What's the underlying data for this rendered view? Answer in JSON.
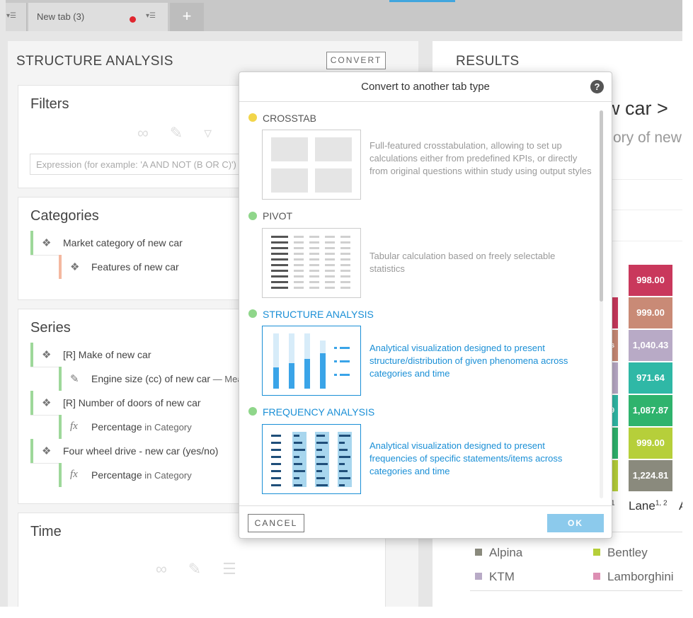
{
  "tabs": {
    "active_label": "New tab (3)",
    "add_label": "+"
  },
  "left_panel": {
    "title": "STRUCTURE ANALYSIS",
    "convert_label": "CONVERT",
    "filters": {
      "title": "Filters",
      "expression_placeholder": "Expression (for example: 'A AND NOT (B OR C)')"
    },
    "categories": {
      "title": "Categories",
      "items": [
        {
          "label": "Market category of new car",
          "color": "#9ed89a"
        },
        {
          "label": "Features of new car",
          "color": "#f4b8a0"
        }
      ]
    },
    "series": {
      "title": "Series",
      "items": [
        {
          "label": "[R] Make of new car",
          "suffix": ""
        },
        {
          "label": "Engine size (cc) of new car",
          "suffix": " —  Mea"
        },
        {
          "label": "[R] Number of doors of new car",
          "suffix": ""
        },
        {
          "label": "Percentage",
          "suffix": " in Category"
        },
        {
          "label": "Four wheel drive - new car (yes/no)",
          "suffix": ""
        },
        {
          "label": "Percentage",
          "suffix": " in Category"
        }
      ]
    },
    "time": {
      "title": "Time"
    }
  },
  "right_panel": {
    "title": "RESULTS",
    "chart_title": "w car >",
    "chart_subtitle": "ory of new",
    "x_label": "Lane",
    "x_label_sup": "1, 2",
    "x_label_partial_sup": "1",
    "x_label_next": "A",
    "partial_labels": [
      "s",
      "9",
      "9"
    ]
  },
  "chart_data": {
    "type": "bar",
    "categories": [
      "Lane"
    ],
    "series": [
      {
        "name": "",
        "values": [
          998.0
        ],
        "color": "#c9385c",
        "label": "998.00"
      },
      {
        "name": "",
        "values": [
          999.0
        ],
        "color": "#c98a76",
        "label": "999.00"
      },
      {
        "name": "KTM",
        "values": [
          1040.43
        ],
        "color": "#b8aac6",
        "label": "1,040.43"
      },
      {
        "name": "",
        "values": [
          971.64
        ],
        "color": "#2fb8a6",
        "label": "971.64"
      },
      {
        "name": "",
        "values": [
          1087.87
        ],
        "color": "#2fb36d",
        "label": "1,087.87"
      },
      {
        "name": "Bentley",
        "values": [
          999.0
        ],
        "color": "#b6cf3a",
        "label": "999.00"
      },
      {
        "name": "Alpina",
        "values": [
          1224.81
        ],
        "color": "#8a8a7d",
        "label": "1,224.81"
      }
    ],
    "legend": [
      {
        "name": "Alpina",
        "color": "#8a8a7d"
      },
      {
        "name": "Bentley",
        "color": "#b6cf3a"
      },
      {
        "name": "KTM",
        "color": "#b8aac6"
      },
      {
        "name": "Lamborghini",
        "color": "#dd8fb3"
      }
    ]
  },
  "modal": {
    "title": "Convert to another tab type",
    "help": "?",
    "options": [
      {
        "name": "CROSSTAB",
        "dot": "#f2d54a",
        "active": false,
        "description": "Full-featured crosstabulation, allowing to set up calculations either from predefined KPIs, or directly from original questions within study using output styles"
      },
      {
        "name": "PIVOT",
        "dot": "#8fd68a",
        "active": false,
        "description": "Tabular calculation based on freely selectable statistics"
      },
      {
        "name": "STRUCTURE ANALYSIS",
        "dot": "#8fd68a",
        "active": true,
        "description": "Analytical visualization designed to present structure/distribution of given phenomena across categories and time"
      },
      {
        "name": "FREQUENCY ANALYSIS",
        "dot": "#8fd68a",
        "active": true,
        "description": "Analytical visualization designed to present frequencies of specific statements/items across categories and time"
      }
    ],
    "cancel_label": "CANCEL",
    "ok_label": "OK"
  }
}
